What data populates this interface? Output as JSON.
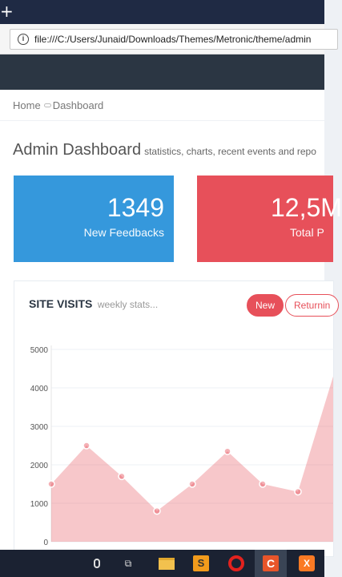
{
  "browser": {
    "new_tab_symbol": "+",
    "url": "file:///C:/Users/Junaid/Downloads/Themes/Metronic/theme/admin",
    "info_symbol": "i"
  },
  "breadcrumb": {
    "home": "Home",
    "current": "Dashboard"
  },
  "page": {
    "title": "Admin Dashboard",
    "subtitle": "statistics, charts, recent events and repo"
  },
  "stats": [
    {
      "value": "1349",
      "label": "New Feedbacks",
      "color": "#3598dc"
    },
    {
      "value": "12,5M",
      "label": "Total P",
      "color": "#e7505a"
    }
  ],
  "portlet": {
    "title": "SITE VISITS",
    "subtitle": "weekly stats...",
    "btn_new": "New",
    "btn_returning": "Returnin"
  },
  "chart_data": {
    "type": "area",
    "title": "SITE VISITS",
    "x": [
      "",
      "",
      "",
      "",
      "",
      "",
      "",
      "",
      ""
    ],
    "series": [
      {
        "values": [
          1500,
          2500,
          1700,
          800,
          1500,
          2350,
          1500,
          1300,
          4300
        ],
        "color": "#e7505a"
      }
    ],
    "ylim": [
      0,
      5000
    ],
    "yticks": [
      0,
      1000,
      2000,
      3000,
      4000,
      5000
    ],
    "grid": true
  },
  "taskbar": {
    "sublime_glyph": "S",
    "cpanel_glyph": "C",
    "xampp_glyph": "X",
    "task_view_glyph": "⧉"
  }
}
